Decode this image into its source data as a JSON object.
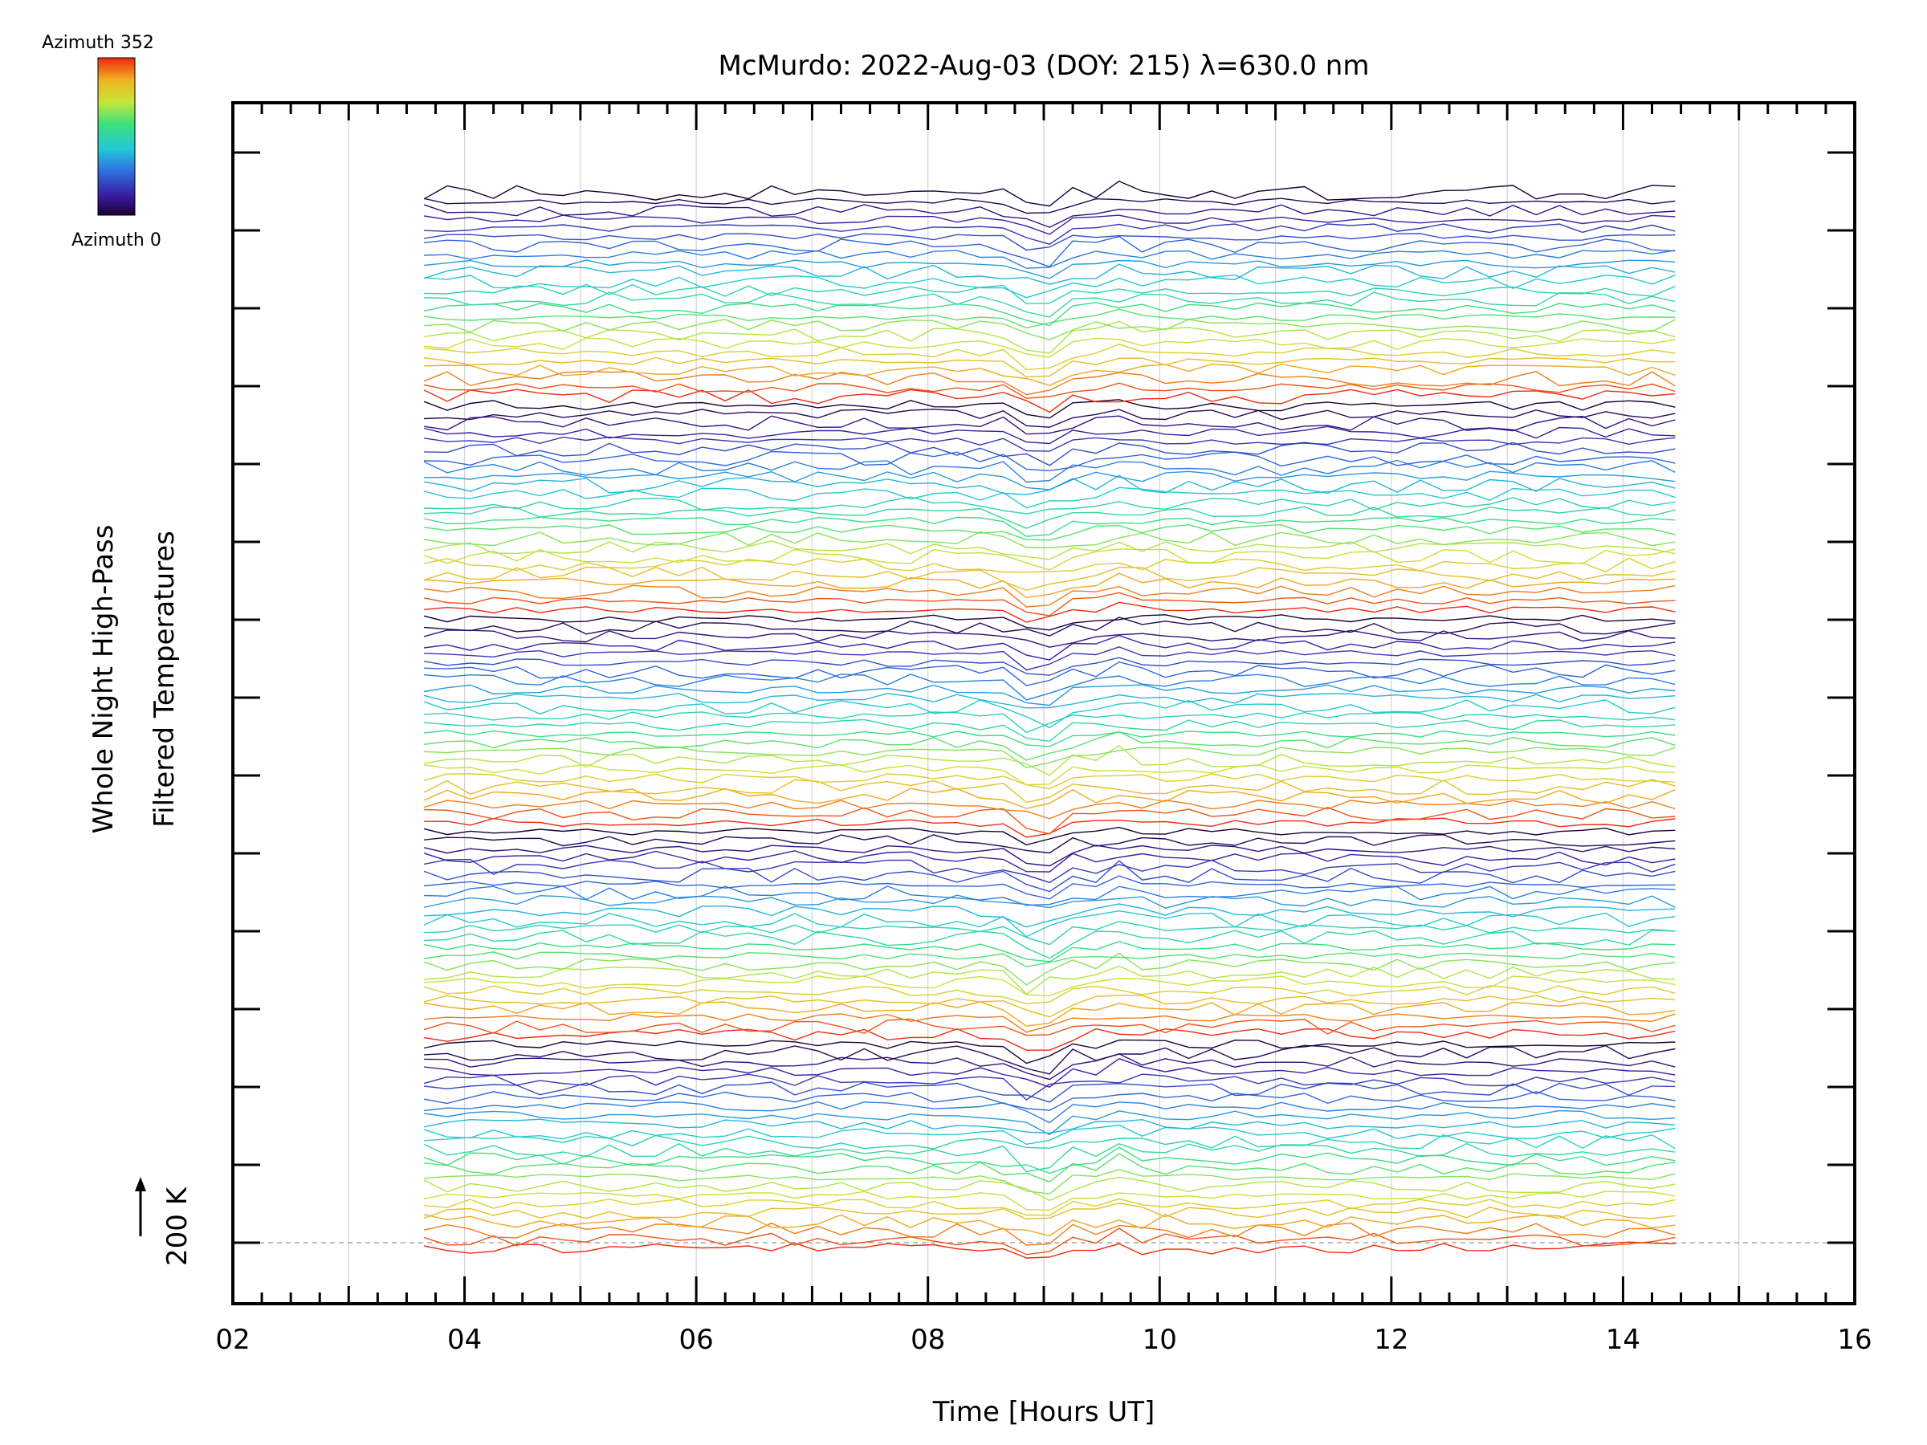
{
  "chart_data": {
    "type": "line",
    "title": "McMurdo: 2022-Aug-03 (DOY: 215) λ=630.0 nm",
    "xlabel": "Time [Hours UT]",
    "ylabel_line1": "Whole Night High-Pass",
    "ylabel_line2": "Filtered Temperatures",
    "scale_label": "200 K",
    "scale_value_K": 200,
    "xlim": [
      2,
      16
    ],
    "x_tick_labels": [
      "02",
      "04",
      "06",
      "08",
      "10",
      "12",
      "14",
      "16"
    ],
    "x_tick_values": [
      2,
      4,
      6,
      8,
      10,
      12,
      14,
      16
    ],
    "data_start_hour": 3.65,
    "data_end_hour": 14.45,
    "grid": true,
    "colorbar": {
      "top_label": "Azimuth 352",
      "bottom_label": "Azimuth 0",
      "colormap": "rainbow",
      "azimuth_range": [
        0,
        352
      ]
    },
    "series_count": 120,
    "rings": 5,
    "azimuths_per_ring": 24,
    "colors": {
      "background": "#ffffff",
      "axis": "#000000",
      "grid": "#d3d3d3",
      "baseline": "#a9a9a9"
    }
  }
}
